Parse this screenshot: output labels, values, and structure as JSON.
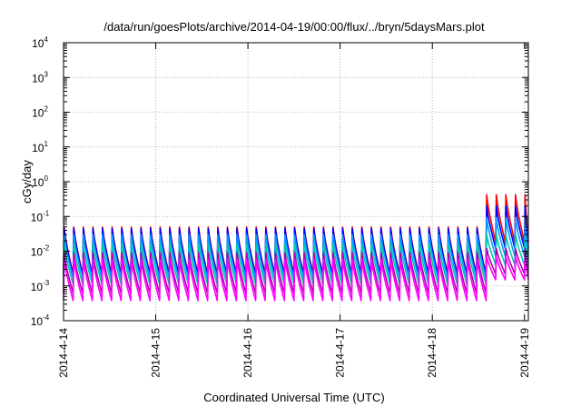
{
  "chart_data": {
    "type": "line",
    "title": "/data/run/goesPlots/archive/2014-04-19/00:00/flux/../bryn/5daysMars.plot",
    "xlabel": "Coordinated Universal Time (UTC)",
    "ylabel": "cGy/day",
    "y_scale": "log",
    "ylim": [
      0.0001,
      10000
    ],
    "y_ticks": [
      {
        "base": "10",
        "exp": "-4"
      },
      {
        "base": "10",
        "exp": "-3"
      },
      {
        "base": "10",
        "exp": "-2"
      },
      {
        "base": "10",
        "exp": "-1"
      },
      {
        "base": "10",
        "exp": "0"
      },
      {
        "base": "10",
        "exp": "1"
      },
      {
        "base": "10",
        "exp": "2"
      },
      {
        "base": "10",
        "exp": "3"
      },
      {
        "base": "10",
        "exp": "4"
      }
    ],
    "x_ticks": [
      "2014-4-14",
      "2014-4-15",
      "2014-4-16",
      "2014-4-17",
      "2014-4-18",
      "2014-4-19"
    ],
    "xlim": [
      "2014-4-14",
      "2014-4-19 01:00"
    ],
    "grid": true,
    "legend": "none",
    "cycle_hours": 2.5,
    "elevated_from": "2014-4-18 14:00",
    "series": [
      {
        "color": "#ff0000",
        "peak_normal": 0.05,
        "trough_normal": 0.0022,
        "peak_elevated": 0.42,
        "trough_elevated": 0.018
      },
      {
        "color": "#0000ff",
        "peak_normal": 0.045,
        "trough_normal": 0.002,
        "peak_elevated": 0.2,
        "trough_elevated": 0.012
      },
      {
        "color": "#00a0ff",
        "peak_normal": 0.03,
        "trough_normal": 0.0016,
        "peak_elevated": 0.09,
        "trough_elevated": 0.007
      },
      {
        "color": "#00c8b0",
        "peak_normal": 0.016,
        "trough_normal": 0.0011,
        "peak_elevated": 0.03,
        "trough_elevated": 0.004
      },
      {
        "color": "#b000b0",
        "peak_normal": 0.009,
        "trough_normal": 0.0006,
        "peak_elevated": 0.012,
        "trough_elevated": 0.0022
      },
      {
        "color": "#ff00ff",
        "peak_normal": 0.006,
        "trough_normal": 0.00038,
        "peak_elevated": 0.007,
        "trough_elevated": 0.0015
      }
    ]
  }
}
